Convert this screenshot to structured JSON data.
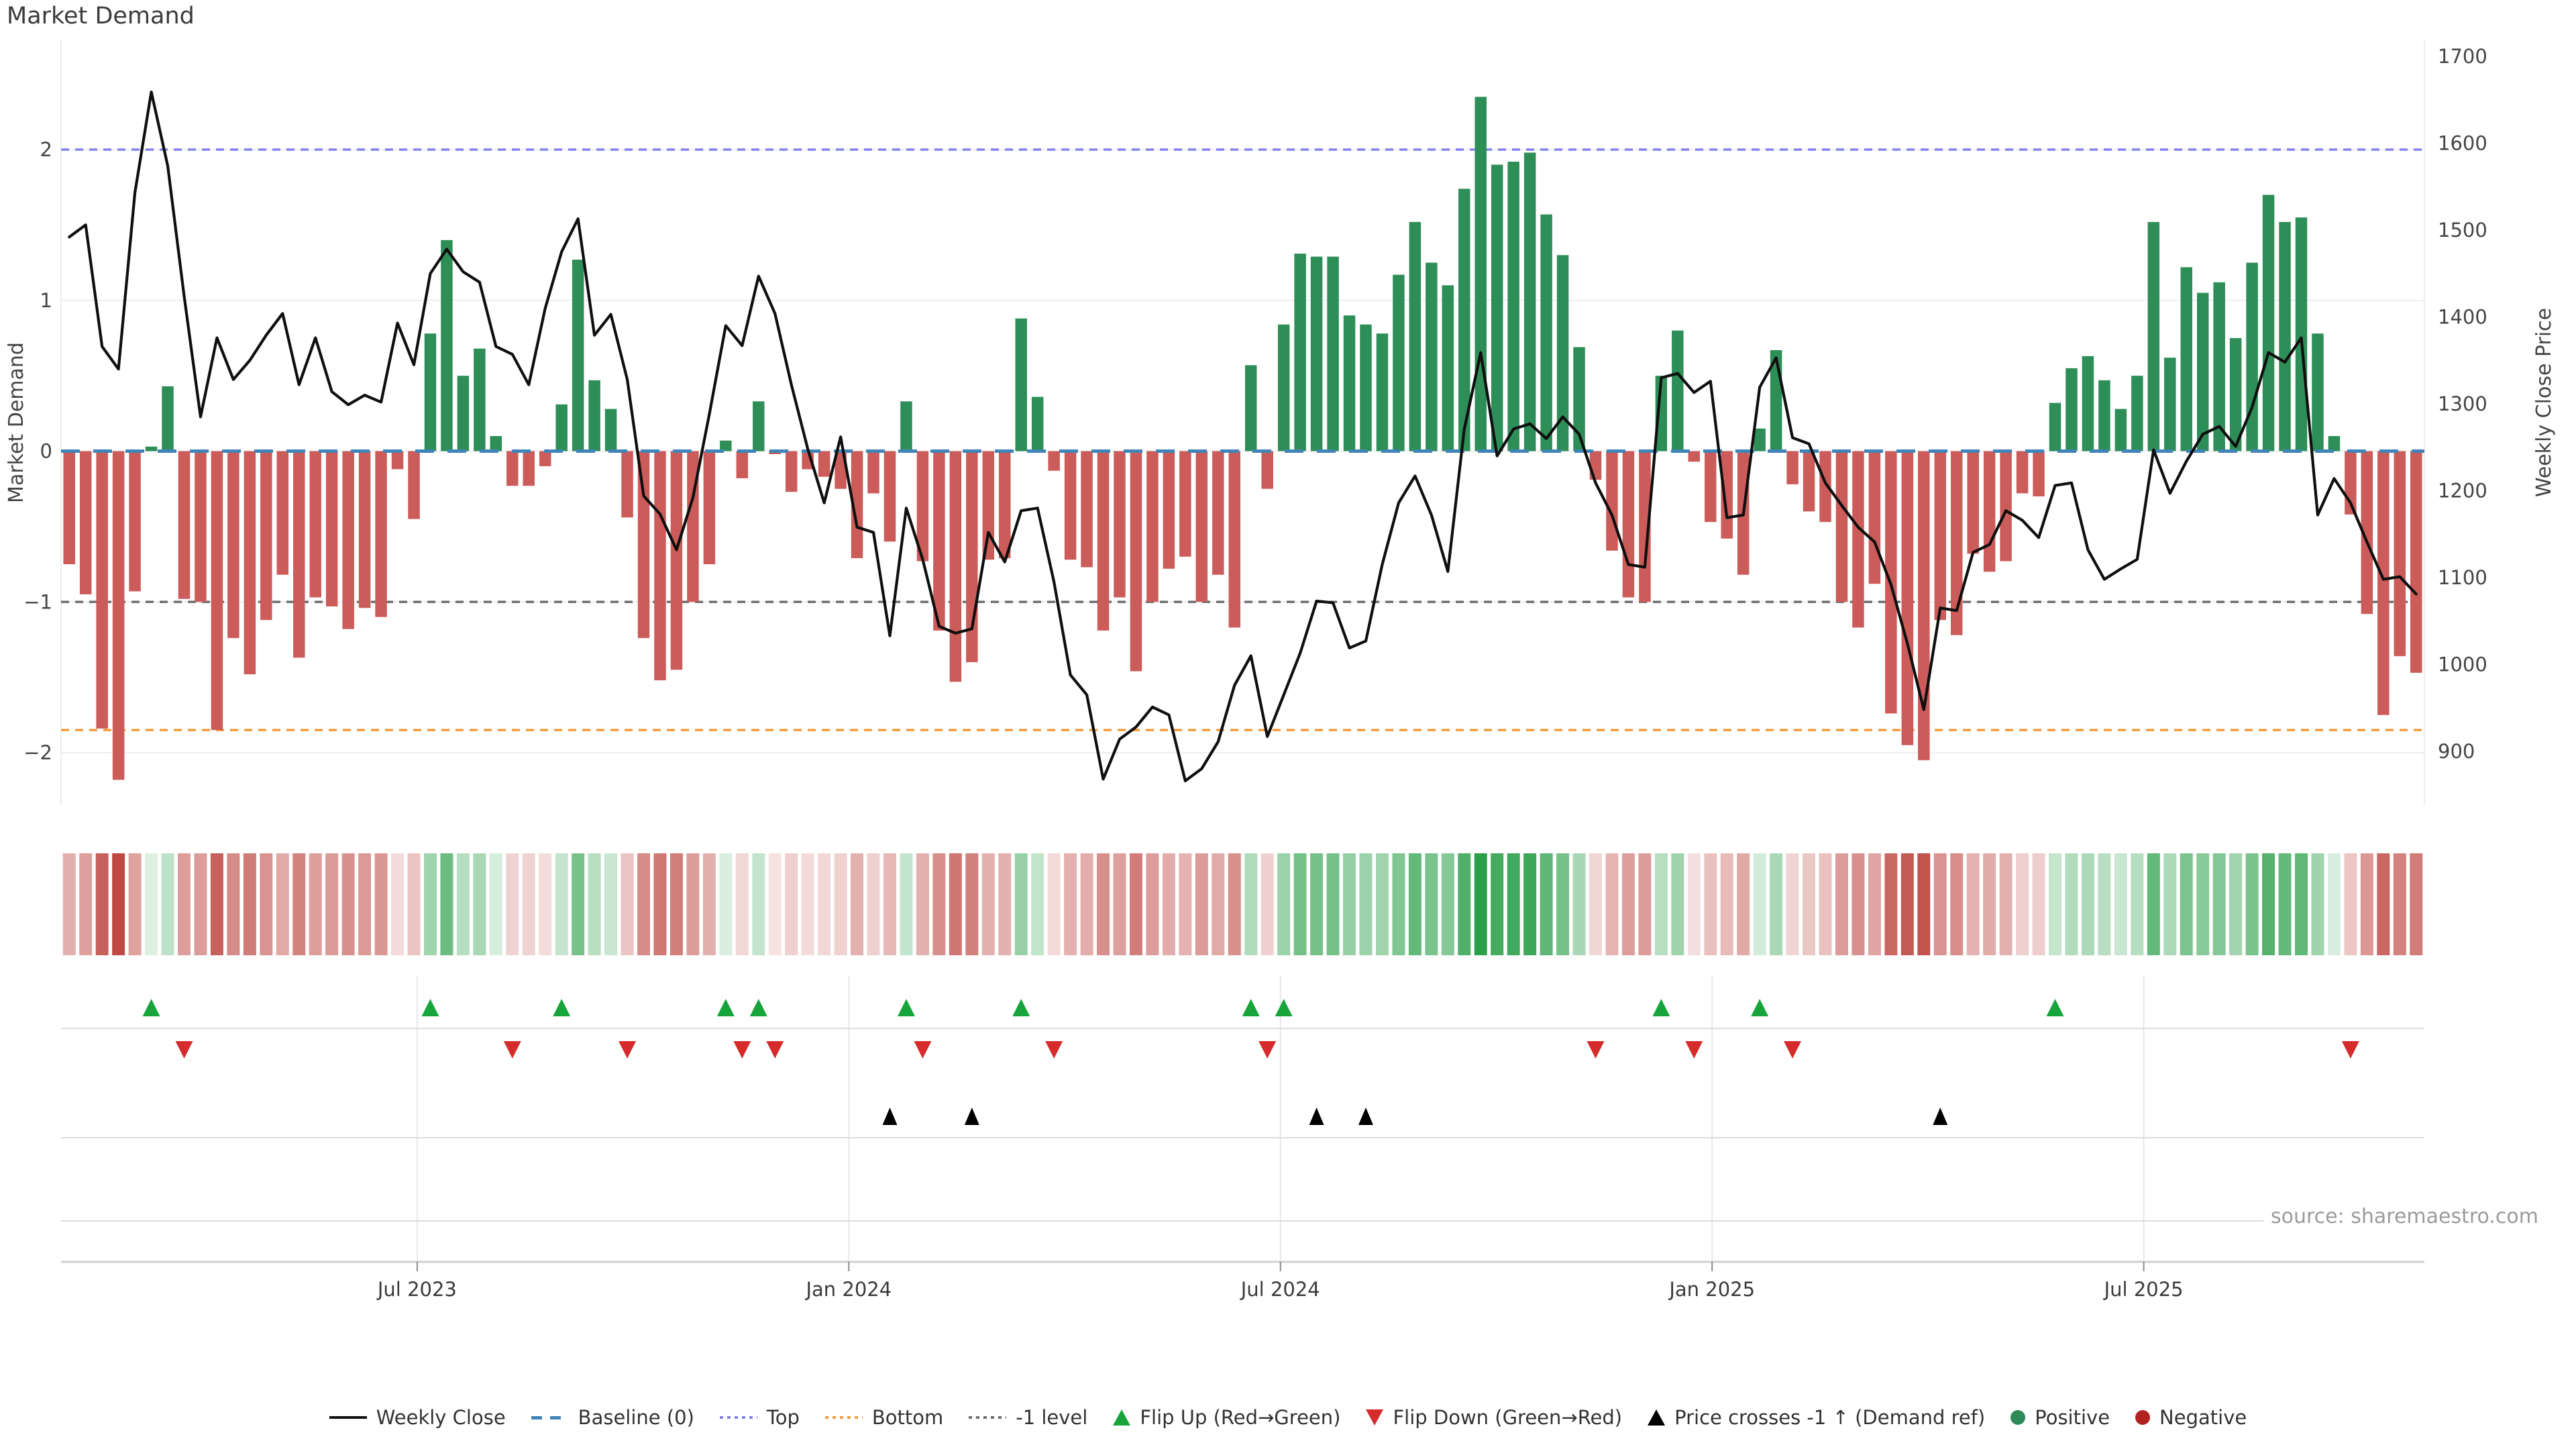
{
  "title": "Market Demand",
  "source": "source: sharemaestro.com",
  "colors": {
    "background": "#ffffff",
    "grid": "#ededf3",
    "axis_line": "#cfcfcf",
    "bar_positive": "#2e8e58",
    "bar_negative": "#cc5c5a",
    "price_line": "#0f0f0f",
    "baseline": "#4084b8",
    "top_line": "#8282ec",
    "bottom_line": "#f49d3f",
    "minus_one_line": "#6f6f6f",
    "flip_up": "#17a53b",
    "flip_down": "#d62b2b",
    "price_cross": "#000000",
    "positive_dot": "#2e8b57",
    "negative_dot": "#b22222"
  },
  "chart_data": {
    "type": "combo",
    "title": "Market Demand",
    "x": {
      "unit": "week",
      "count": 144,
      "tick_labels": [
        "Jul 2023",
        "Jan 2024",
        "Jul 2024",
        "Jan 2025",
        "Jul 2025"
      ],
      "tick_positions": [
        21.7,
        48.0,
        74.3,
        100.6,
        126.9
      ]
    },
    "left_axis": {
      "label": "Market Demand",
      "tick_labels": [
        "2",
        "1",
        "0",
        "−1",
        "−2"
      ],
      "tick_values": [
        2,
        1,
        0,
        -1,
        -2
      ],
      "range": [
        -2.38,
        2.73
      ],
      "grid": true
    },
    "right_axis": {
      "label": "Weekly Close Price",
      "tick_labels": [
        "1700",
        "1600",
        "1500",
        "1400",
        "1300",
        "1200",
        "1100",
        "1000",
        "900"
      ],
      "tick_values": [
        1700,
        1600,
        1500,
        1400,
        1300,
        1200,
        1100,
        1000,
        900
      ],
      "range": [
        838,
        1719
      ],
      "grid": false
    },
    "series": [
      {
        "name": "Market Demand",
        "type": "bar",
        "axis": "left",
        "positive_color": "#2e8e58",
        "negative_color": "#cc5c5a",
        "values": [
          -0.75,
          -0.95,
          -1.84,
          -2.18,
          -0.93,
          0.03,
          0.43,
          -0.98,
          -1.0,
          -1.85,
          -1.24,
          -1.48,
          -1.12,
          -0.82,
          -1.37,
          -0.97,
          -1.03,
          -1.18,
          -1.04,
          -1.1,
          -0.12,
          -0.45,
          0.78,
          1.4,
          0.5,
          0.68,
          0.1,
          -0.23,
          -0.23,
          -0.1,
          0.31,
          1.27,
          0.47,
          0.28,
          -0.44,
          -1.24,
          -1.52,
          -1.45,
          -1.0,
          -0.75,
          0.07,
          -0.18,
          0.33,
          -0.02,
          -0.27,
          -0.12,
          -0.17,
          -0.25,
          -0.71,
          -0.28,
          -0.6,
          0.33,
          -0.73,
          -1.19,
          -1.53,
          -1.4,
          -0.72,
          -0.71,
          0.88,
          0.36,
          -0.13,
          -0.72,
          -0.77,
          -1.19,
          -0.97,
          -1.46,
          -1.0,
          -0.78,
          -0.7,
          -1.0,
          -0.82,
          -1.17,
          0.57,
          -0.25,
          0.84,
          1.31,
          1.29,
          1.29,
          0.9,
          0.84,
          0.78,
          1.17,
          1.52,
          1.25,
          1.1,
          1.74,
          2.35,
          1.9,
          1.92,
          1.98,
          1.57,
          1.3,
          0.69,
          -0.19,
          -0.66,
          -0.97,
          -1.0,
          0.5,
          0.8,
          -0.07,
          -0.47,
          -0.58,
          -0.82,
          0.15,
          0.67,
          -0.22,
          -0.4,
          -0.47,
          -1.0,
          -1.17,
          -0.88,
          -1.74,
          -1.95,
          -2.05,
          -1.12,
          -1.22,
          -0.68,
          -0.8,
          -0.73,
          -0.28,
          -0.3,
          0.32,
          0.55,
          0.63,
          0.47,
          0.28,
          0.5,
          1.52,
          0.62,
          1.22,
          1.05,
          1.12,
          0.75,
          1.25,
          1.7,
          1.52,
          1.55,
          0.78,
          0.1,
          -0.42,
          -1.08,
          -1.75,
          -1.36,
          -1.47
        ]
      },
      {
        "name": "Weekly Close",
        "type": "line",
        "axis": "right",
        "color": "#0f0f0f",
        "values": [
          1492,
          1506,
          1366,
          1340,
          1543,
          1659,
          1574,
          1424,
          1285,
          1376,
          1328,
          1350,
          1379,
          1404,
          1322,
          1376,
          1314,
          1299,
          1310,
          1302,
          1393,
          1345,
          1450,
          1478,
          1452,
          1440,
          1366,
          1357,
          1322,
          1410,
          1475,
          1513,
          1379,
          1403,
          1328,
          1194,
          1173,
          1132,
          1192,
          1288,
          1390,
          1367,
          1447,
          1404,
          1322,
          1248,
          1186,
          1262,
          1158,
          1152,
          1033,
          1180,
          1121,
          1044,
          1036,
          1041,
          1152,
          1118,
          1177,
          1180,
          1095,
          988,
          965,
          868,
          914,
          928,
          951,
          942,
          866,
          880,
          911,
          976,
          1010,
          917,
          965,
          1013,
          1073,
          1071,
          1019,
          1027,
          1115,
          1186,
          1217,
          1172,
          1107,
          1271,
          1359,
          1240,
          1271,
          1277,
          1260,
          1285,
          1265,
          1209,
          1172,
          1115,
          1112,
          1330,
          1335,
          1313,
          1326,
          1169,
          1172,
          1319,
          1353,
          1261,
          1254,
          1209,
          1183,
          1158,
          1141,
          1092,
          1024,
          948,
          1065,
          1062,
          1129,
          1138,
          1177,
          1166,
          1146,
          1206,
          1209,
          1132,
          1098,
          1110,
          1121,
          1247,
          1197,
          1234,
          1265,
          1274,
          1251,
          1296,
          1359,
          1348,
          1376,
          1172,
          1214,
          1186,
          1141,
          1098,
          1101,
          1081
        ]
      }
    ],
    "reference_lines": [
      {
        "name": "Baseline (0)",
        "axis": "left",
        "value": 0,
        "color": "#4084b8",
        "style": "dashed"
      },
      {
        "name": "Top",
        "axis": "left",
        "value": 2,
        "color": "#8282ec",
        "style": "dotted"
      },
      {
        "name": "Bottom",
        "axis": "left",
        "value": -1.85,
        "color": "#f49d3f",
        "style": "dotted"
      },
      {
        "name": "-1 level",
        "axis": "left",
        "value": -1,
        "color": "#6f6f6f",
        "style": "dotted"
      }
    ],
    "heatmap": {
      "derived_from": "Market Demand values (red negative, green positive, intensity by magnitude)",
      "positive_color": "#2ba04a",
      "negative_color": "#be4842"
    },
    "signals": {
      "flip_up": {
        "label": "Flip Up (Red→Green)",
        "color": "#17a53b",
        "indices": [
          5,
          22,
          30,
          40,
          42,
          51,
          58,
          72,
          74,
          97,
          103,
          121
        ]
      },
      "flip_down": {
        "label": "Flip Down (Green→Red)",
        "color": "#d62b2b",
        "indices": [
          7,
          27,
          34,
          41,
          43,
          52,
          60,
          73,
          93,
          99,
          105,
          139
        ]
      },
      "price_cross": {
        "label": "Price crosses -1 ↑ (Demand ref)",
        "color": "#000000",
        "indices": [
          50,
          55,
          76,
          79,
          114
        ]
      }
    }
  },
  "legend": {
    "items": [
      {
        "id": "weekly-close",
        "label": "Weekly Close",
        "glyph": "line",
        "color": "#111111"
      },
      {
        "id": "baseline",
        "label": "Baseline (0)",
        "glyph": "dashes",
        "color": "#4084b8"
      },
      {
        "id": "top",
        "label": "Top",
        "glyph": "dots",
        "color": "#8282ec"
      },
      {
        "id": "bottom",
        "label": "Bottom",
        "glyph": "dots",
        "color": "#f49d3f"
      },
      {
        "id": "minus-1-level",
        "label": "-1 level",
        "glyph": "dots",
        "color": "#6f6f6f"
      },
      {
        "id": "flip-up",
        "label": "Flip Up (Red→Green)",
        "glyph": "tri-up",
        "color": "#17a53b"
      },
      {
        "id": "flip-down",
        "label": "Flip Down (Green→Red)",
        "glyph": "tri-down",
        "color": "#d62b2b"
      },
      {
        "id": "price-cross",
        "label": "Price crosses -1 ↑ (Demand ref)",
        "glyph": "tri-up",
        "color": "#000000"
      },
      {
        "id": "positive",
        "label": "Positive",
        "glyph": "dot",
        "color": "#2e8b57"
      },
      {
        "id": "negative",
        "label": "Negative",
        "glyph": "dot",
        "color": "#b22222"
      }
    ]
  }
}
